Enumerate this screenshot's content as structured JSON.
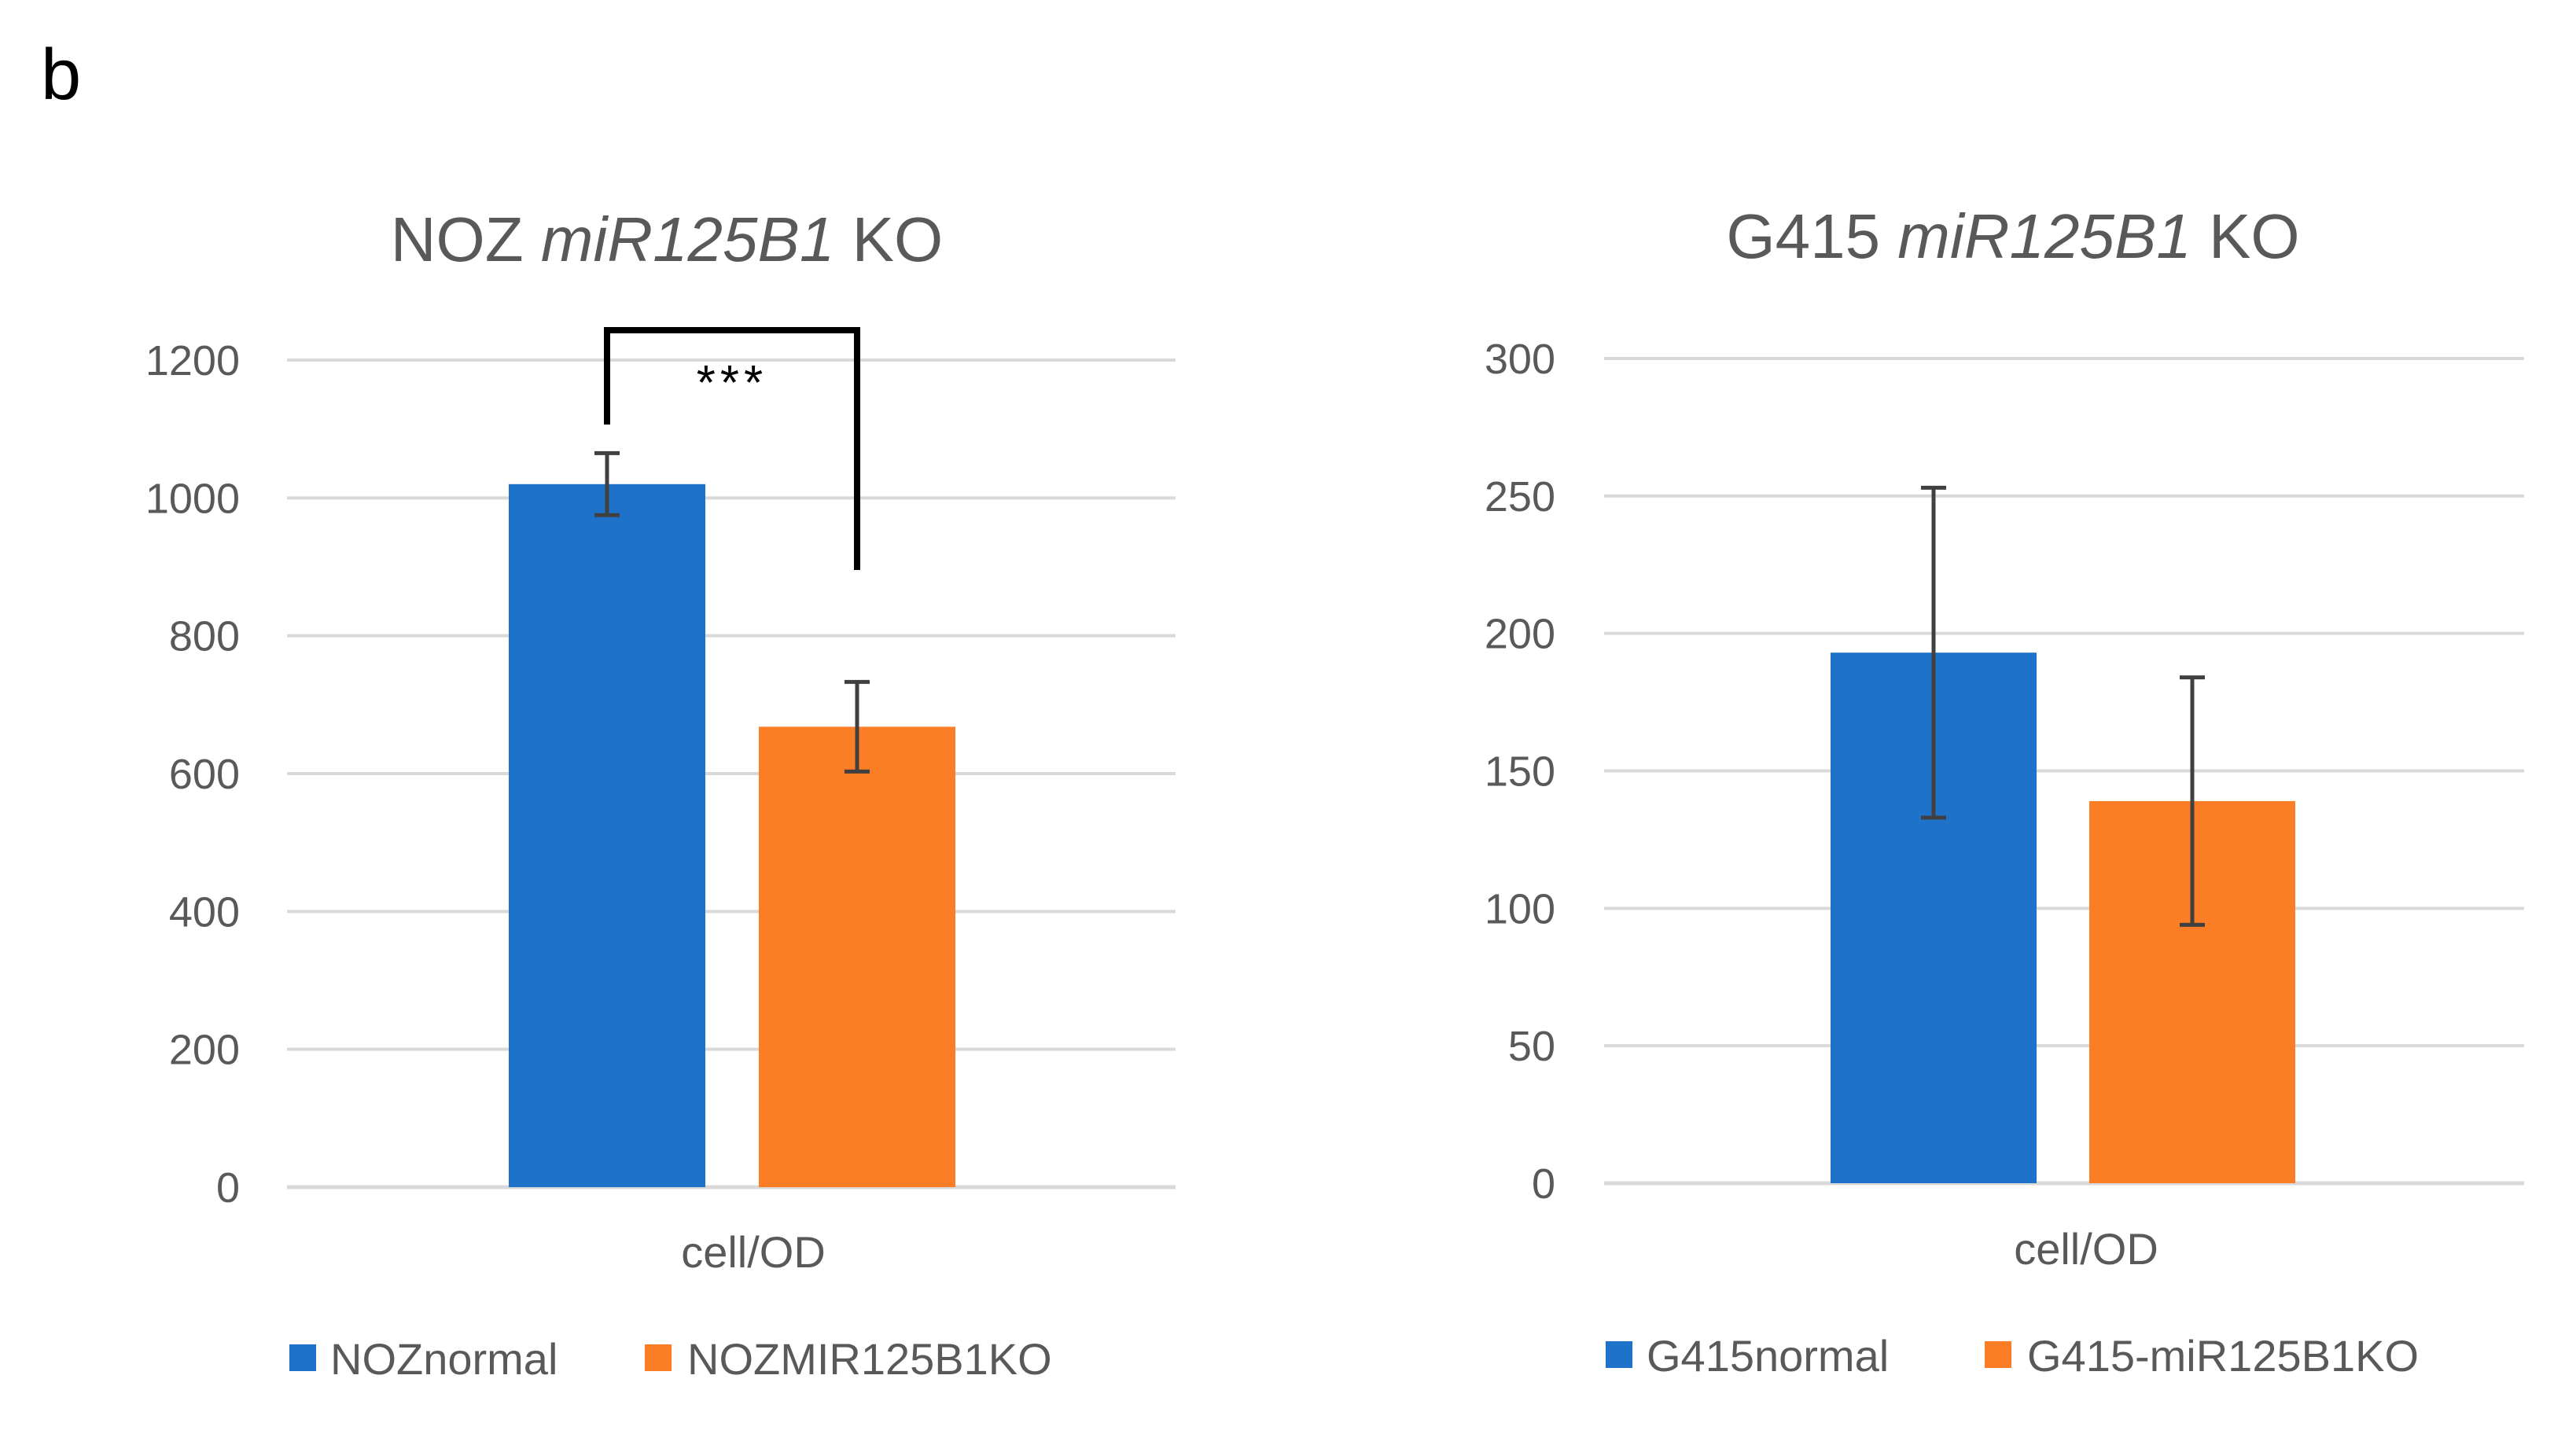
{
  "panel_label": "b",
  "colors": {
    "blue": "#1f72c9",
    "orange": "#fb7d25",
    "text": "#595959",
    "grid": "#d9d9d9",
    "errorbar": "#404040"
  },
  "chart_data": [
    {
      "type": "bar",
      "title_parts": [
        {
          "text": "NOZ ",
          "italic": false
        },
        {
          "text": "miR125B1",
          "italic": true
        },
        {
          "text": " KO",
          "italic": false
        }
      ],
      "categories": [
        "cell/OD"
      ],
      "ylim": [
        0,
        1200
      ],
      "yticks": [
        0,
        200,
        400,
        600,
        800,
        1000,
        1200
      ],
      "grid": true,
      "legend_position": "bottom",
      "series": [
        {
          "name": "NOZnormal",
          "color": "blue",
          "values": [
            1020
          ],
          "errors": [
            45
          ]
        },
        {
          "name": "NOZMIR125B1KO",
          "color": "orange",
          "values": [
            668
          ],
          "errors": [
            65
          ]
        }
      ],
      "significance": {
        "label": "***",
        "between": [
          0,
          1
        ]
      }
    },
    {
      "type": "bar",
      "title_parts": [
        {
          "text": "G415 ",
          "italic": false
        },
        {
          "text": "miR125B1",
          "italic": true
        },
        {
          "text": " KO",
          "italic": false
        }
      ],
      "categories": [
        "cell/OD"
      ],
      "ylim": [
        0,
        300
      ],
      "yticks": [
        0,
        50,
        100,
        150,
        200,
        250,
        300
      ],
      "grid": true,
      "legend_position": "bottom",
      "series": [
        {
          "name": "G415normal",
          "color": "blue",
          "values": [
            193
          ],
          "errors": [
            60
          ]
        },
        {
          "name": "G415-miR125B1KO",
          "color": "orange",
          "values": [
            139
          ],
          "errors": [
            45
          ]
        }
      ]
    }
  ]
}
